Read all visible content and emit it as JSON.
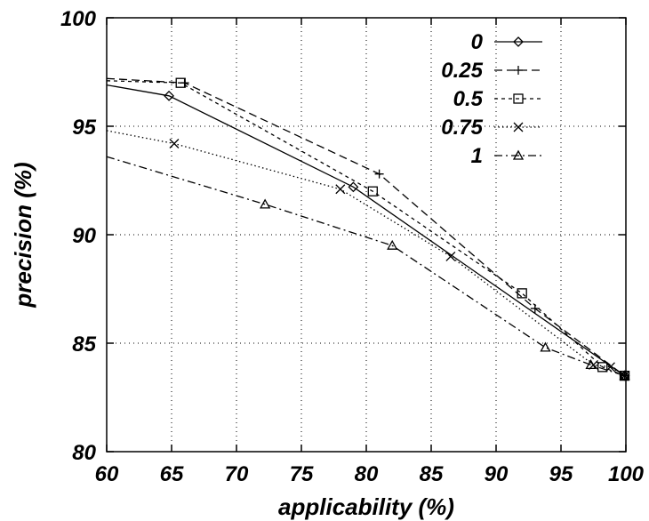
{
  "chart_data": {
    "type": "line",
    "title": "",
    "xlabel": "applicability (%)",
    "ylabel": "precision (%)",
    "xlim": [
      60,
      100
    ],
    "ylim": [
      80,
      100
    ],
    "xticks": [
      60,
      65,
      70,
      75,
      80,
      85,
      90,
      95,
      100
    ],
    "yticks": [
      80,
      85,
      90,
      95,
      100
    ],
    "grid": true,
    "legend_position": "top-right",
    "series": [
      {
        "name": "0",
        "marker": "diamond",
        "dash": "solid",
        "points": [
          [
            60,
            96.9
          ],
          [
            64.8,
            96.4
          ],
          [
            79,
            92.2
          ],
          [
            99.9,
            83.5
          ]
        ]
      },
      {
        "name": "0.25",
        "marker": "plus",
        "dash": "dashed",
        "points": [
          [
            60,
            97.2
          ],
          [
            66,
            97.0
          ],
          [
            81,
            92.8
          ],
          [
            93,
            86.6
          ],
          [
            99.9,
            83.5
          ]
        ]
      },
      {
        "name": "0.5",
        "marker": "square",
        "dash": "short-dashed",
        "points": [
          [
            60,
            97.1
          ],
          [
            65.7,
            97.0
          ],
          [
            80.5,
            92.0
          ],
          [
            92,
            87.3
          ],
          [
            98.2,
            83.9
          ],
          [
            99.9,
            83.5
          ]
        ]
      },
      {
        "name": "0.75",
        "marker": "x",
        "dash": "dotted",
        "points": [
          [
            60,
            94.8
          ],
          [
            65.2,
            94.2
          ],
          [
            78,
            92.1
          ],
          [
            86.5,
            89.0
          ],
          [
            97.5,
            84.0
          ],
          [
            98.8,
            83.9
          ],
          [
            99.9,
            83.5
          ]
        ]
      },
      {
        "name": "1",
        "marker": "triangle",
        "dash": "dash-dot",
        "points": [
          [
            60,
            93.6
          ],
          [
            72.2,
            91.4
          ],
          [
            82,
            89.5
          ],
          [
            93.8,
            84.8
          ],
          [
            97.3,
            84.0
          ],
          [
            99.9,
            83.5
          ]
        ]
      }
    ]
  }
}
